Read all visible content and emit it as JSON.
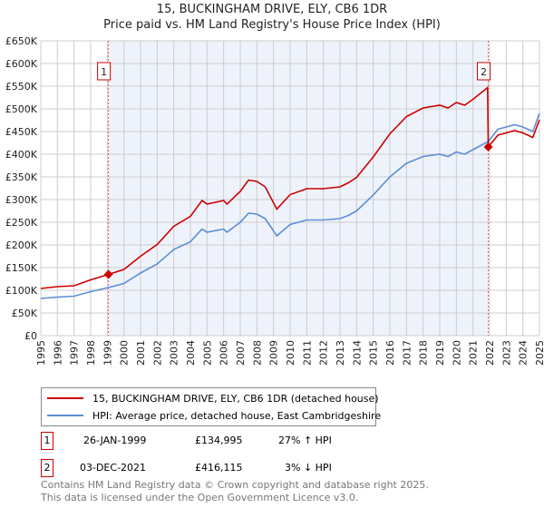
{
  "chart_data": {
    "type": "line",
    "title": "15, BUCKINGHAM DRIVE, ELY, CB6 1DR",
    "subtitle": "Price paid vs. HM Land Registry's House Price Index (HPI)",
    "xlim": [
      1995,
      2025
    ],
    "ylim": [
      0,
      650000
    ],
    "y_ticks": [
      0,
      50000,
      100000,
      150000,
      200000,
      250000,
      300000,
      350000,
      400000,
      450000,
      500000,
      550000,
      600000,
      650000
    ],
    "y_tick_labels": [
      "£0",
      "£50K",
      "£100K",
      "£150K",
      "£200K",
      "£250K",
      "£300K",
      "£350K",
      "£400K",
      "£450K",
      "£500K",
      "£550K",
      "£600K",
      "£650K"
    ],
    "x_tick_labels": [
      "1995",
      "1996",
      "1997",
      "1998",
      "1999",
      "2000",
      "2001",
      "2002",
      "2003",
      "2004",
      "2005",
      "2006",
      "2007",
      "2008",
      "2009",
      "2010",
      "2011",
      "2012",
      "2013",
      "2014",
      "2015",
      "2016",
      "2017",
      "2018",
      "2019",
      "2020",
      "2021",
      "2022",
      "2023",
      "2024",
      "2025"
    ],
    "grid": true,
    "series": [
      {
        "name": "15, BUCKINGHAM DRIVE, ELY, CB6 1DR (detached house)",
        "color": "#cc0000",
        "x": [
          1995,
          1996,
          1997,
          1998,
          1999.07,
          2000,
          2001,
          2002,
          2003,
          2004,
          2004.7,
          2005,
          2006,
          2006.2,
          2007,
          2007.5,
          2008,
          2008.5,
          2009.2,
          2010,
          2011,
          2012,
          2013,
          2013.5,
          2014,
          2015,
          2016,
          2017,
          2018,
          2019,
          2019.5,
          2020,
          2020.5,
          2021,
          2021.88,
          2021.92,
          2022.5,
          2023,
          2023.5,
          2024,
          2024.6,
          2025
        ],
        "values": [
          104000,
          108000,
          110000,
          123000,
          135000,
          146000,
          175000,
          201000,
          241000,
          263000,
          298000,
          290000,
          298000,
          290000,
          318000,
          343000,
          340000,
          328000,
          279000,
          311000,
          324000,
          324000,
          328000,
          337000,
          349000,
          394000,
          445000,
          483000,
          502000,
          508000,
          502000,
          514000,
          508000,
          521000,
          547000,
          416115,
          442000,
          447000,
          452000,
          447000,
          437000,
          476000
        ]
      },
      {
        "name": "HPI: Average price, detached house, East Cambridgeshire",
        "color": "#5b8ed6",
        "x": [
          1995,
          1996,
          1997,
          1998,
          1999.07,
          2000,
          2001,
          2002,
          2003,
          2004,
          2004.7,
          2005,
          2006,
          2006.2,
          2007,
          2007.5,
          2008,
          2008.5,
          2009.2,
          2010,
          2011,
          2012,
          2013,
          2013.5,
          2014,
          2015,
          2016,
          2017,
          2018,
          2019,
          2019.5,
          2020,
          2020.5,
          2021,
          2021.92,
          2022.5,
          2023,
          2023.5,
          2024,
          2024.6,
          2025
        ],
        "values": [
          82000,
          85000,
          87000,
          97000,
          106000,
          115000,
          138000,
          158000,
          190000,
          207000,
          235000,
          228000,
          235000,
          228000,
          250000,
          270000,
          268000,
          258000,
          220000,
          245000,
          255000,
          255000,
          258000,
          265000,
          275000,
          310000,
          350000,
          380000,
          395000,
          400000,
          395000,
          405000,
          400000,
          410000,
          428000,
          455000,
          460000,
          465000,
          460000,
          450000,
          490000
        ]
      }
    ],
    "sales": [
      {
        "label": "1",
        "x": 1999.07,
        "value": 134995,
        "date": "26-JAN-1999",
        "price": "£134,995",
        "hpi": "27% ↑ HPI"
      },
      {
        "label": "2",
        "x": 2021.92,
        "value": 416115,
        "date": "03-DEC-2021",
        "price": "£416,115",
        "hpi": "3% ↓ HPI"
      }
    ],
    "legend_placement": "below"
  },
  "footer": {
    "line1": "Contains HM Land Registry data © Crown copyright and database right 2025.",
    "line2": "This data is licensed under the Open Government Licence v3.0."
  }
}
